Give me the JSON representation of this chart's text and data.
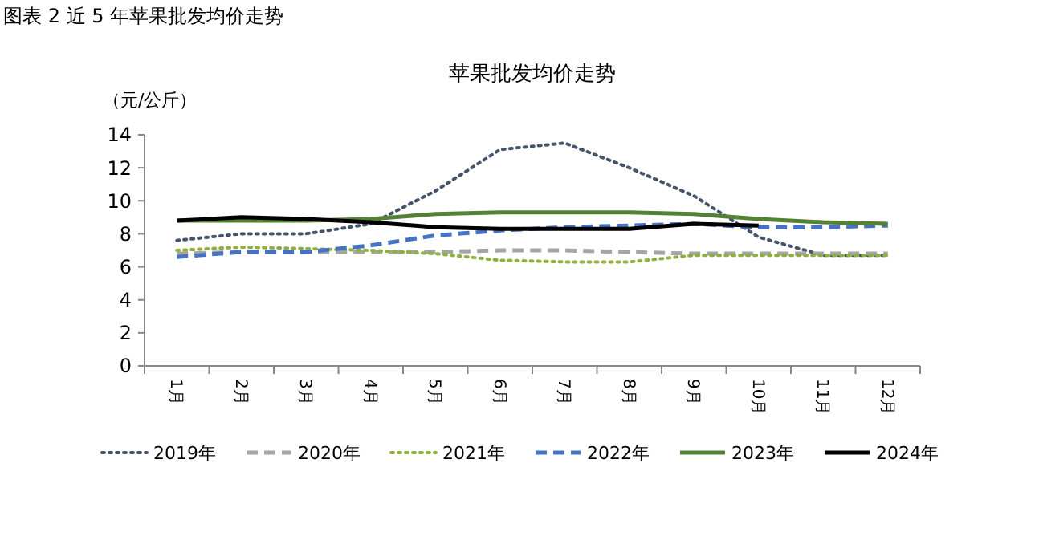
{
  "chart_data": {
    "type": "line",
    "title": "苹果批发均价走势",
    "ylabel": "（元/公斤）",
    "annotations": [
      "图表 2 近 5 年苹果批发均价走势"
    ],
    "categories": [
      "1月",
      "2月",
      "3月",
      "4月",
      "5月",
      "6月",
      "7月",
      "8月",
      "9月",
      "10月",
      "11月",
      "12月"
    ],
    "ylim": [
      0,
      14
    ],
    "yticks": [
      0,
      2,
      4,
      6,
      8,
      10,
      12,
      14
    ],
    "grid": false,
    "legend": "bottom",
    "series": [
      {
        "name": "2019年",
        "color": "#44546a",
        "line_style": "dotted",
        "values": [
          7.6,
          8.0,
          8.0,
          8.6,
          10.6,
          13.1,
          13.5,
          12.0,
          10.3,
          7.8,
          6.7,
          6.7
        ]
      },
      {
        "name": "2020年",
        "color": "#a5a5a5",
        "line_style": "dashed",
        "values": [
          6.8,
          6.9,
          6.9,
          6.9,
          6.9,
          7.0,
          7.0,
          6.9,
          6.8,
          6.8,
          6.8,
          6.8
        ]
      },
      {
        "name": "2021年",
        "color": "#8fb03f",
        "line_style": "dotted",
        "values": [
          7.0,
          7.2,
          7.1,
          7.0,
          6.8,
          6.4,
          6.3,
          6.3,
          6.7,
          6.7,
          6.7,
          6.7
        ]
      },
      {
        "name": "2022年",
        "color": "#4472c4",
        "line_style": "dashed",
        "values": [
          6.6,
          6.9,
          6.9,
          7.3,
          7.9,
          8.2,
          8.4,
          8.5,
          8.6,
          8.4,
          8.4,
          8.5
        ]
      },
      {
        "name": "2023年",
        "color": "#548235",
        "line_style": "solid",
        "values": [
          8.8,
          8.8,
          8.8,
          8.9,
          9.2,
          9.3,
          9.3,
          9.3,
          9.2,
          8.9,
          8.7,
          8.6
        ]
      },
      {
        "name": "2024年",
        "color": "#000000",
        "line_style": "solid",
        "values": [
          8.8,
          9.0,
          8.9,
          8.7,
          8.4,
          8.3,
          8.3,
          8.3,
          8.6,
          8.5,
          null,
          null
        ]
      }
    ]
  }
}
